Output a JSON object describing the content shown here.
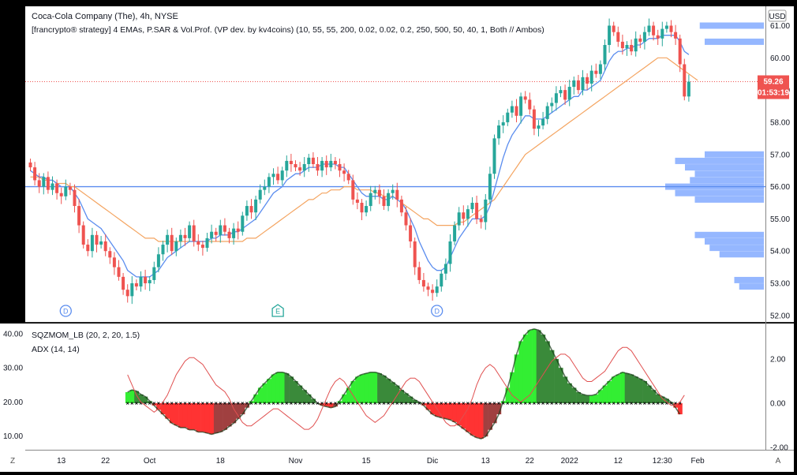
{
  "header": {
    "title": "Coca-Cola Company (The), 4h, NYSE",
    "strategy": "[francrypto® strategy] 4 EMAs, P.SAR & Vol.Prof. (VP dev. by kv4coins) (10, 55, 55, 200, 0.02, 0.02, 0.2, 250, 500, 50, 40, 1, Both // Ambos)"
  },
  "toolbar": {
    "currency_button": "USD",
    "zoom_corner": "Z",
    "auto_corner": "A"
  },
  "colors": {
    "up": "#26a69a",
    "down": "#ef5350",
    "ema_fast": "#5b8def",
    "ema_slow": "#f4a460",
    "hline": "#5b8def",
    "price_badge": "#ef5350",
    "volume_profile": "#82aaff",
    "mom_pos_bright": "#33ee33",
    "mom_pos_dark": "#3a8a3a",
    "mom_neg_bright": "#ff3333",
    "mom_neg_dark": "#a04040",
    "adx": "#e05050"
  },
  "price_badge": {
    "price": "59.26",
    "countdown": "01:53:19"
  },
  "lower_pane": {
    "indicator_1": "SQZMOM_LB (20, 2, 20, 1.5)",
    "indicator_2": "ADX (14, 14)"
  },
  "events": [
    {
      "label": "D",
      "idx": 8,
      "color": "#5b8def",
      "shape": "circle"
    },
    {
      "label": "E",
      "idx": 56,
      "color": "#26a69a",
      "shape": "pentagon"
    },
    {
      "label": "D",
      "idx": 92,
      "color": "#5b8def",
      "shape": "circle"
    }
  ],
  "chart_data": [
    {
      "type": "candlestick",
      "name": "",
      "ylim": [
        51.8,
        61.6
      ],
      "y_ticks": [
        52,
        53,
        54,
        55,
        56,
        57,
        58,
        59,
        60,
        61
      ],
      "y_tick_labels": [
        "52.00",
        "53.00",
        "54.00",
        "55.00",
        "56.00",
        "57.00",
        "58.00",
        "59.00",
        "60.00",
        "61.00"
      ],
      "x_ticks": [
        {
          "label": "Z",
          "idx": -3
        },
        {
          "label": "13",
          "idx": 7
        },
        {
          "label": "22",
          "idx": 17
        },
        {
          "label": "Oct",
          "idx": 27
        },
        {
          "label": "18",
          "idx": 43
        },
        {
          "label": "Nov",
          "idx": 60
        },
        {
          "label": "15",
          "idx": 76
        },
        {
          "label": "Dic",
          "idx": 91
        },
        {
          "label": "13",
          "idx": 103
        },
        {
          "label": "22",
          "idx": 113
        },
        {
          "label": "2022",
          "idx": 122
        },
        {
          "label": "12",
          "idx": 133
        },
        {
          "label": "12:30",
          "idx": 143
        },
        {
          "label": "Feb",
          "idx": 151
        }
      ],
      "horizontal_line": 56.0,
      "last_price_line": 59.26,
      "close": [
        56.6,
        56.2,
        56.0,
        56.3,
        55.9,
        56.1,
        55.8,
        55.7,
        56.0,
        55.9,
        55.4,
        54.8,
        54.2,
        54.0,
        54.5,
        54.2,
        54.3,
        54.0,
        53.8,
        53.5,
        53.2,
        52.8,
        52.6,
        53.0,
        52.9,
        53.2,
        53.0,
        53.1,
        53.5,
        53.9,
        54.2,
        54.5,
        54.0,
        54.3,
        54.5,
        54.4,
        54.8,
        54.3,
        54.2,
        54.1,
        54.4,
        54.6,
        54.5,
        54.8,
        54.6,
        54.4,
        54.7,
        54.6,
        55.1,
        55.4,
        55.2,
        55.6,
        55.9,
        56.0,
        56.3,
        56.4,
        56.2,
        56.5,
        56.8,
        56.7,
        56.6,
        56.5,
        56.7,
        56.9,
        56.7,
        56.5,
        56.8,
        56.6,
        56.8,
        56.7,
        56.5,
        56.4,
        56.2,
        55.6,
        55.5,
        55.2,
        55.4,
        55.8,
        55.9,
        55.7,
        55.4,
        55.8,
        55.9,
        55.6,
        55.2,
        54.8,
        54.3,
        53.5,
        53.1,
        52.9,
        52.8,
        52.7,
        52.9,
        53.3,
        53.6,
        54.3,
        54.8,
        55.2,
        55.0,
        55.3,
        55.5,
        55.0,
        54.9,
        55.6,
        56.4,
        57.5,
        57.9,
        58.0,
        58.3,
        58.5,
        58.2,
        58.8,
        58.7,
        58.4,
        57.8,
        57.9,
        58.1,
        58.5,
        58.6,
        58.9,
        59.0,
        58.7,
        59.1,
        59.3,
        59.0,
        59.4,
        59.2,
        59.6,
        59.5,
        59.8,
        60.4,
        61.0,
        60.8,
        60.5,
        60.3,
        60.4,
        60.2,
        60.6,
        60.5,
        60.8,
        61.0,
        60.7,
        60.6,
        60.9,
        61.0,
        60.8,
        60.6,
        59.8,
        58.8,
        59.26
      ],
      "open_offset_note": "",
      "ema_fast": [
        56.5,
        56.4,
        56.3,
        56.3,
        56.2,
        56.2,
        56.1,
        56.0,
        56.0,
        56.0,
        55.8,
        55.6,
        55.3,
        55.0,
        54.9,
        54.8,
        54.7,
        54.5,
        54.3,
        54.1,
        53.9,
        53.7,
        53.4,
        53.3,
        53.2,
        53.2,
        53.2,
        53.2,
        53.3,
        53.4,
        53.6,
        53.8,
        53.9,
        54.0,
        54.1,
        54.2,
        54.3,
        54.3,
        54.3,
        54.3,
        54.3,
        54.4,
        54.4,
        54.5,
        54.5,
        54.5,
        54.6,
        54.6,
        54.7,
        54.8,
        54.9,
        55.0,
        55.2,
        55.4,
        55.6,
        55.8,
        55.9,
        56.0,
        56.2,
        56.3,
        56.4,
        56.4,
        56.5,
        56.6,
        56.6,
        56.6,
        56.7,
        56.7,
        56.7,
        56.7,
        56.6,
        56.6,
        56.4,
        56.2,
        56.0,
        55.8,
        55.7,
        55.7,
        55.7,
        55.7,
        55.6,
        55.6,
        55.7,
        55.6,
        55.5,
        55.3,
        55.0,
        54.7,
        54.3,
        54.0,
        53.7,
        53.5,
        53.4,
        53.4,
        53.5,
        53.8,
        54.1,
        54.4,
        54.6,
        54.8,
        55.0,
        55.0,
        55.0,
        55.1,
        55.4,
        55.9,
        56.4,
        56.9,
        57.3,
        57.6,
        57.8,
        58.0,
        58.2,
        58.2,
        58.1,
        58.1,
        58.1,
        58.2,
        58.3,
        58.4,
        58.5,
        58.6,
        58.7,
        58.8,
        58.8,
        59.0,
        59.0,
        59.1,
        59.2,
        59.3,
        59.6,
        59.9,
        60.1,
        60.2,
        60.2,
        60.3,
        60.3,
        60.4,
        60.4,
        60.5,
        60.6,
        60.6,
        60.6,
        60.7,
        60.7,
        60.7,
        60.7,
        60.5,
        60.2,
        60.1
      ],
      "ema_slow": [
        56.3,
        56.3,
        56.3,
        56.2,
        56.2,
        56.2,
        56.1,
        56.1,
        56.1,
        56.0,
        56.0,
        55.9,
        55.8,
        55.7,
        55.6,
        55.5,
        55.4,
        55.3,
        55.2,
        55.1,
        55.0,
        54.9,
        54.8,
        54.7,
        54.6,
        54.5,
        54.4,
        54.4,
        54.4,
        54.3,
        54.3,
        54.3,
        54.3,
        54.3,
        54.3,
        54.3,
        54.3,
        54.3,
        54.3,
        54.3,
        54.3,
        54.3,
        54.3,
        54.3,
        54.3,
        54.3,
        54.3,
        54.3,
        54.3,
        54.4,
        54.4,
        54.4,
        54.5,
        54.6,
        54.7,
        54.8,
        54.9,
        55.0,
        55.1,
        55.2,
        55.3,
        55.4,
        55.5,
        55.6,
        55.6,
        55.7,
        55.8,
        55.8,
        55.9,
        55.9,
        55.9,
        56.0,
        56.0,
        56.0,
        55.9,
        55.9,
        55.9,
        55.9,
        55.8,
        55.8,
        55.7,
        55.7,
        55.7,
        55.6,
        55.5,
        55.4,
        55.3,
        55.2,
        55.1,
        55.0,
        55.0,
        54.9,
        54.8,
        54.8,
        54.8,
        54.8,
        54.8,
        54.9,
        54.9,
        55.0,
        55.1,
        55.2,
        55.3,
        55.4,
        55.5,
        55.6,
        55.8,
        56.0,
        56.2,
        56.4,
        56.6,
        56.8,
        57.0,
        57.1,
        57.2,
        57.3,
        57.4,
        57.5,
        57.6,
        57.7,
        57.8,
        57.9,
        58.0,
        58.1,
        58.2,
        58.3,
        58.4,
        58.5,
        58.6,
        58.7,
        58.8,
        58.9,
        59.0,
        59.1,
        59.2,
        59.3,
        59.4,
        59.5,
        59.6,
        59.7,
        59.8,
        59.9,
        60.0,
        60.0,
        60.0,
        59.9,
        59.8,
        59.7,
        59.6,
        59.5,
        59.4,
        59.3
      ],
      "volume_profile": [
        {
          "price": 61.0,
          "width": 0.65
        },
        {
          "price": 60.5,
          "width": 0.6
        },
        {
          "price": 57.0,
          "width": 0.6
        },
        {
          "price": 56.8,
          "width": 0.9
        },
        {
          "price": 56.6,
          "width": 0.8
        },
        {
          "price": 56.4,
          "width": 0.7
        },
        {
          "price": 56.2,
          "width": 0.75
        },
        {
          "price": 56.0,
          "width": 1.0
        },
        {
          "price": 55.8,
          "width": 0.9
        },
        {
          "price": 55.6,
          "width": 0.7
        },
        {
          "price": 54.5,
          "width": 0.7
        },
        {
          "price": 54.3,
          "width": 0.6
        },
        {
          "price": 54.1,
          "width": 0.55
        },
        {
          "price": 53.9,
          "width": 0.45
        },
        {
          "price": 53.1,
          "width": 0.3
        },
        {
          "price": 52.9,
          "width": 0.25
        }
      ]
    },
    {
      "type": "area",
      "name": "",
      "left_ylim": [
        6,
        43
      ],
      "left_ticks": [
        10,
        20,
        30,
        40
      ],
      "left_tick_labels": [
        "10.00",
        "20.00",
        "30.00",
        "40.00"
      ],
      "right_ylim": [
        -2.1,
        3.6
      ],
      "right_ticks": [
        -2,
        0,
        2
      ],
      "right_tick_labels": [
        "-2.00",
        "0.00",
        "2.00"
      ],
      "momentum": [
        0.5,
        0.6,
        0.55,
        0.4,
        0.3,
        0.1,
        -0.1,
        -0.3,
        -0.5,
        -0.7,
        -0.9,
        -1.0,
        -1.1,
        -1.1,
        -1.2,
        -1.2,
        -1.3,
        -1.3,
        -1.35,
        -1.4,
        -1.35,
        -1.3,
        -1.2,
        -1.05,
        -0.9,
        -0.7,
        -0.5,
        -0.2,
        0.1,
        0.4,
        0.7,
        0.9,
        1.1,
        1.3,
        1.4,
        1.4,
        1.35,
        1.2,
        1.0,
        0.8,
        0.6,
        0.4,
        0.2,
        0.0,
        -0.1,
        -0.15,
        -0.2,
        -0.15,
        0.1,
        0.4,
        0.7,
        1.0,
        1.2,
        1.3,
        1.35,
        1.4,
        1.4,
        1.35,
        1.25,
        1.1,
        0.95,
        0.8,
        0.6,
        0.45,
        0.3,
        0.15,
        0.05,
        -0.1,
        -0.3,
        -0.5,
        -0.6,
        -0.65,
        -0.7,
        -0.75,
        -0.85,
        -1.0,
        -1.15,
        -1.3,
        -1.45,
        -1.55,
        -1.6,
        -1.5,
        -1.2,
        -0.9,
        -0.5,
        0.1,
        0.7,
        1.4,
        2.2,
        2.8,
        3.1,
        3.3,
        3.35,
        3.3,
        3.1,
        2.8,
        2.4,
        2.0,
        1.6,
        1.2,
        0.9,
        0.7,
        0.5,
        0.4,
        0.35,
        0.35,
        0.4,
        0.6,
        0.8,
        1.0,
        1.2,
        1.3,
        1.4,
        1.35,
        1.3,
        1.2,
        1.1,
        1.0,
        0.8,
        0.6,
        0.4,
        0.3,
        0.2,
        0.05,
        -0.2,
        -0.5
      ],
      "momentum_start_idx": 22,
      "adx": [
        28,
        25,
        22,
        20,
        19,
        18,
        17,
        18,
        20,
        22,
        25,
        28,
        30,
        32,
        33,
        33,
        32,
        31,
        29,
        27,
        25,
        24,
        23,
        21,
        18,
        16,
        14,
        13,
        13,
        14,
        15,
        16,
        17,
        18,
        18,
        17,
        16,
        15,
        14,
        13,
        12,
        12,
        13,
        15,
        18,
        21,
        24,
        26,
        27,
        26,
        24,
        22,
        20,
        18,
        16,
        15,
        14,
        15,
        16,
        18,
        20,
        22,
        24,
        26,
        27,
        27,
        26,
        24,
        22,
        20,
        18,
        16,
        14,
        13,
        13,
        14,
        16,
        18,
        21,
        25,
        28,
        30,
        31,
        30,
        28,
        26,
        24,
        22,
        21,
        20,
        21,
        22,
        24,
        26,
        28,
        30,
        32,
        33,
        34,
        34,
        33,
        31,
        29,
        27,
        26,
        26,
        27,
        28,
        29,
        31,
        33,
        35,
        36,
        36,
        35,
        33,
        31,
        29,
        27,
        25,
        23,
        21,
        20,
        19,
        19,
        20,
        22
      ],
      "adx_start_idx": 22
    }
  ]
}
